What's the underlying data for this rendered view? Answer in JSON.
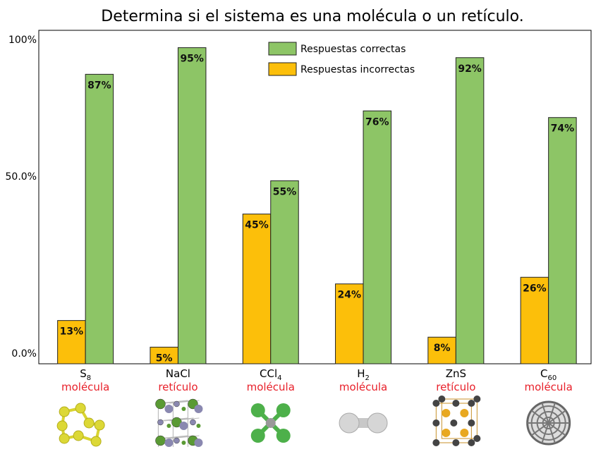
{
  "chart_data": {
    "type": "bar",
    "title": "Determina si el sistema es una molécula o un retículo.",
    "categories": [
      {
        "formula": "S",
        "sub": "8",
        "classification": "molécula",
        "model": "s8"
      },
      {
        "formula": "NaCl",
        "sub": "",
        "classification": "retículo",
        "model": "nacl"
      },
      {
        "formula": "CCl",
        "sub": "4",
        "classification": "molécula",
        "model": "ccl4"
      },
      {
        "formula": "H",
        "sub": "2",
        "classification": "molécula",
        "model": "h2"
      },
      {
        "formula": "ZnS",
        "sub": "",
        "classification": "retículo",
        "model": "zns"
      },
      {
        "formula": "C",
        "sub": "60",
        "classification": "molécula",
        "model": "c60"
      }
    ],
    "series": [
      {
        "name": "Respuestas incorrectas",
        "color": "#fcbf0a",
        "values": [
          13,
          5,
          45,
          24,
          8,
          26
        ]
      },
      {
        "name": "Respuestas correctas",
        "color": "#8dc566",
        "values": [
          87,
          95,
          55,
          76,
          92,
          74
        ]
      }
    ],
    "data_labels": [
      [
        "13%",
        "5%",
        "45%",
        "24%",
        "8%",
        "26%"
      ],
      [
        "87%",
        "95%",
        "55%",
        "76%",
        "92%",
        "74%"
      ]
    ],
    "yticks": [
      {
        "value": 0,
        "label": "0.0%"
      },
      {
        "value": 50,
        "label": "50.0%"
      },
      {
        "value": 100,
        "label": "100%"
      }
    ],
    "ylim": [
      0,
      100
    ],
    "classification_color": "#e8202a",
    "legend_position": "top-center",
    "legend_order": [
      1,
      0
    ],
    "grid": false
  }
}
